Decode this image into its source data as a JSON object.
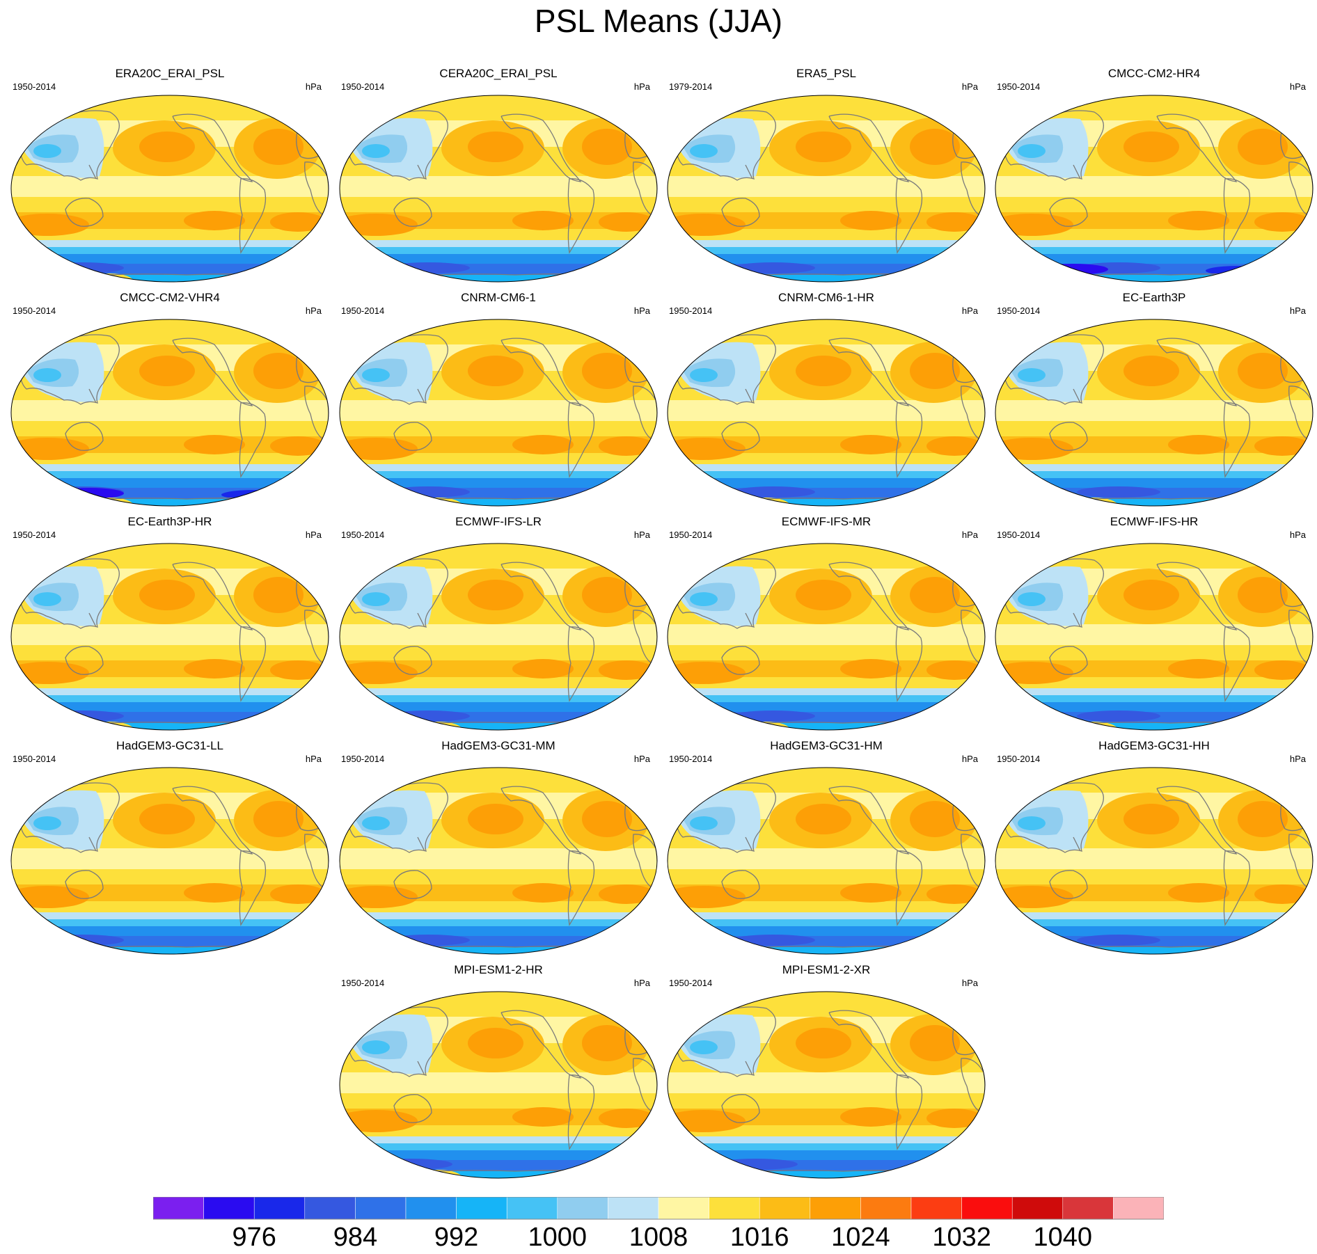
{
  "title": "PSL Means (JJA)",
  "colors": {
    "levels": [
      "#7b1fef",
      "#2a0bf0",
      "#1928ea",
      "#3558e0",
      "#2f71e8",
      "#2190ee",
      "#16b4f7",
      "#45c2f5",
      "#90cdef",
      "#bde2f6",
      "#fff6a3",
      "#fde03b",
      "#fcbc16",
      "#fd9f06",
      "#fc7b10",
      "#fc3d12",
      "#fa0d0d",
      "#cf0b0b",
      "#d9363a",
      "#fbb3b8"
    ],
    "coast": "#7a7a7a"
  },
  "panels": [
    {
      "name": "ERA20C_ERAI_PSL",
      "period": "1950-2014",
      "units": "hPa"
    },
    {
      "name": "CERA20C_ERAI_PSL",
      "period": "1950-2014",
      "units": "hPa"
    },
    {
      "name": "ERA5_PSL",
      "period": "1979-2014",
      "units": "hPa"
    },
    {
      "name": "CMCC-CM2-HR4",
      "period": "1950-2014",
      "units": "hPa"
    },
    {
      "name": "CMCC-CM2-VHR4",
      "period": "1950-2014",
      "units": "hPa"
    },
    {
      "name": "CNRM-CM6-1",
      "period": "1950-2014",
      "units": "hPa"
    },
    {
      "name": "CNRM-CM6-1-HR",
      "period": "1950-2014",
      "units": "hPa"
    },
    {
      "name": "EC-Earth3P",
      "period": "1950-2014",
      "units": "hPa"
    },
    {
      "name": "EC-Earth3P-HR",
      "period": "1950-2014",
      "units": "hPa"
    },
    {
      "name": "ECMWF-IFS-LR",
      "period": "1950-2014",
      "units": "hPa"
    },
    {
      "name": "ECMWF-IFS-MR",
      "period": "1950-2014",
      "units": "hPa"
    },
    {
      "name": "ECMWF-IFS-HR",
      "period": "1950-2014",
      "units": "hPa"
    },
    {
      "name": "HadGEM3-GC31-LL",
      "period": "1950-2014",
      "units": "hPa"
    },
    {
      "name": "HadGEM3-GC31-MM",
      "period": "1950-2014",
      "units": "hPa"
    },
    {
      "name": "HadGEM3-GC31-HM",
      "period": "1950-2014",
      "units": "hPa"
    },
    {
      "name": "HadGEM3-GC31-HH",
      "period": "1950-2014",
      "units": "hPa"
    },
    {
      "name": "MPI-ESM1-2-HR",
      "period": "1950-2014",
      "units": "hPa"
    },
    {
      "name": "MPI-ESM1-2-XR",
      "period": "1950-2014",
      "units": "hPa"
    }
  ],
  "chart_data": {
    "type": "heatmap",
    "title": "PSL Means (JJA)",
    "units": "hPa",
    "projection": "global map, Pacific-centered",
    "colorbar": {
      "min": 968,
      "max": 1044,
      "interval": 4,
      "tick_labels": [
        "976",
        "984",
        "992",
        "1000",
        "1008",
        "1016",
        "1024",
        "1032",
        "1040"
      ],
      "tick_values": [
        976,
        984,
        992,
        1000,
        1008,
        1016,
        1024,
        1032,
        1040
      ]
    }
  }
}
